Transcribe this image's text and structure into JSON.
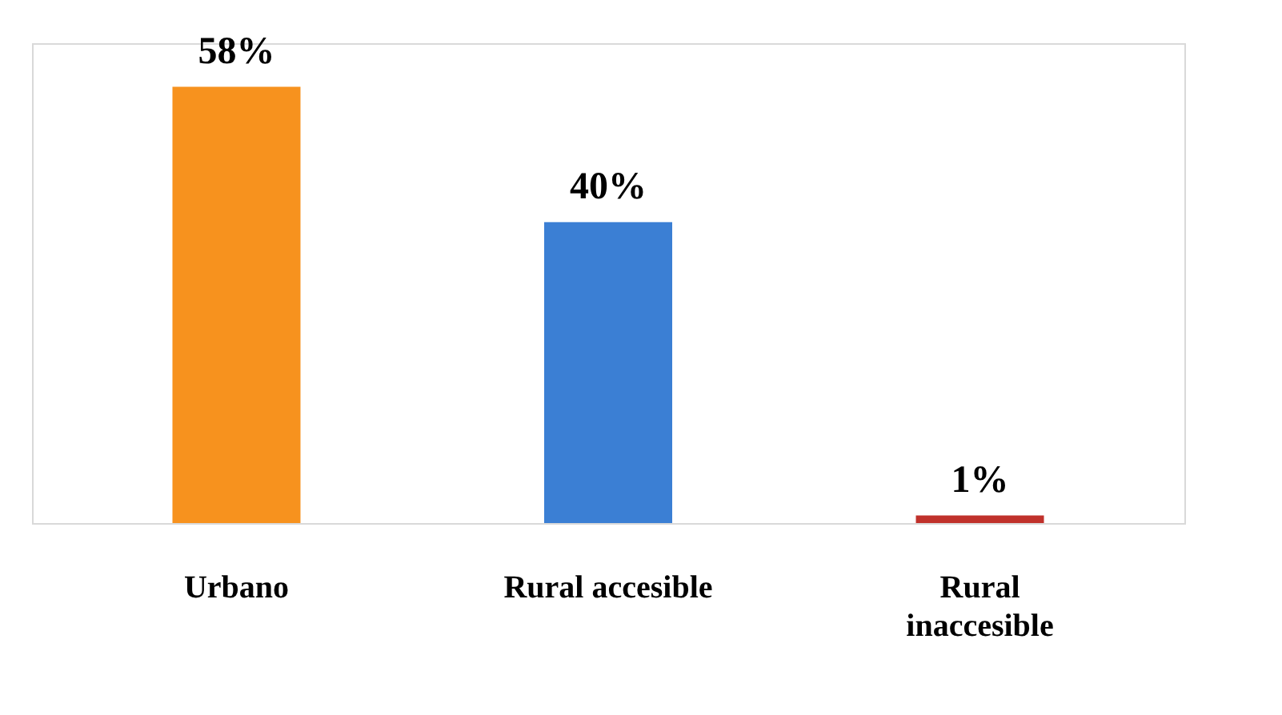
{
  "chart_data": {
    "type": "bar",
    "categories": [
      "Urbano",
      "Rural accesible",
      "Rural inaccesible"
    ],
    "values": [
      58,
      40,
      1
    ],
    "colors": [
      "#f7921e",
      "#3b7fd4",
      "#c0312b"
    ],
    "value_labels": [
      "58%",
      "40%",
      "1%"
    ],
    "grid": false,
    "legend": false
  }
}
